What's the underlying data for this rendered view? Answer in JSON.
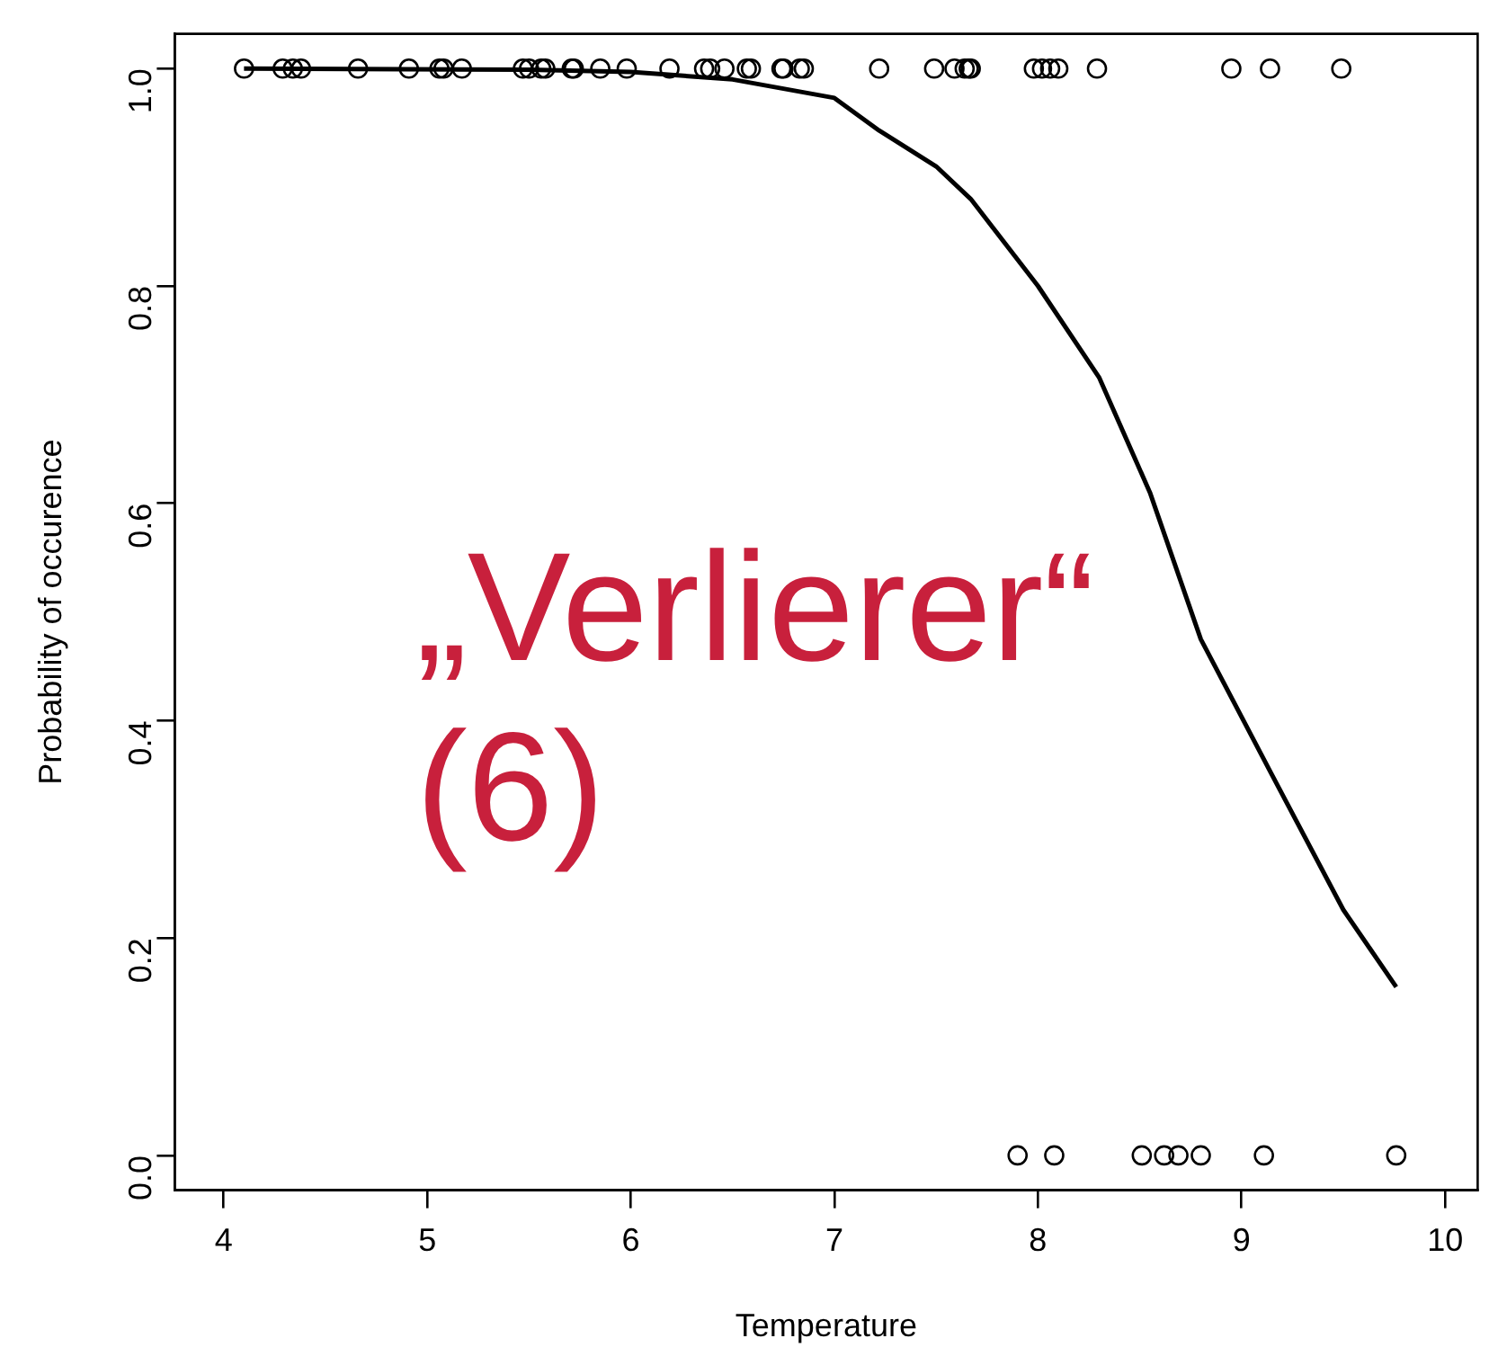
{
  "chart_data": {
    "type": "scatter",
    "xlabel": "Temperature",
    "ylabel": "Probability of occurence",
    "xlim": [
      3.76,
      10.16
    ],
    "xticks": [
      4,
      5,
      6,
      7,
      8,
      9,
      10
    ],
    "ylim": [
      -0.032,
      1.032
    ],
    "yticks": [
      {
        "value": 0,
        "label": "0.0"
      },
      0.2,
      0.4,
      0.6,
      0.8,
      {
        "value": 1,
        "label": "1.0"
      }
    ],
    "grid": false,
    "legend": false,
    "marker": "circle",
    "series": [
      {
        "type": "scatter",
        "color": "#000000",
        "x": [
          4.1,
          4.29,
          4.34,
          4.38,
          4.66,
          4.91,
          5.06,
          5.08,
          5.17,
          5.47,
          5.5,
          5.56,
          5.58,
          5.71,
          5.72,
          5.85,
          5.98,
          6.19,
          6.36,
          6.39,
          6.46,
          6.57,
          6.59,
          6.74,
          6.75,
          6.83,
          6.85,
          7.22,
          7.49,
          7.59,
          7.64,
          7.66,
          7.67,
          7.98,
          8.02,
          8.06,
          8.1,
          8.29,
          8.95,
          9.14,
          9.49,
          7.9,
          8.08,
          8.51,
          8.62,
          8.69,
          8.8,
          9.11,
          9.76
        ],
        "values": [
          1,
          1,
          1,
          1,
          1,
          1,
          1,
          1,
          1,
          1,
          1,
          1,
          1,
          1,
          1,
          1,
          1,
          1,
          1,
          1,
          1,
          1,
          1,
          1,
          1,
          1,
          1,
          1,
          1,
          1,
          1,
          1,
          1,
          1,
          1,
          1,
          1,
          1,
          1,
          1,
          1,
          0,
          0,
          0,
          0,
          0,
          0,
          0,
          0
        ]
      },
      {
        "type": "line",
        "color": "#000000",
        "marker": "none",
        "x": [
          4.1,
          5.5,
          6.0,
          6.5,
          7.0,
          7.22,
          7.5,
          7.67,
          8.0,
          8.3,
          8.55,
          8.8,
          9.15,
          9.5,
          9.76
        ],
        "values": [
          1.0,
          0.999,
          0.997,
          0.99,
          0.973,
          0.943,
          0.91,
          0.88,
          0.8,
          0.716,
          0.61,
          0.475,
          0.35,
          0.226,
          0.155
        ]
      }
    ],
    "annotations": [
      "„Verlierer“",
      "(6)"
    ]
  }
}
